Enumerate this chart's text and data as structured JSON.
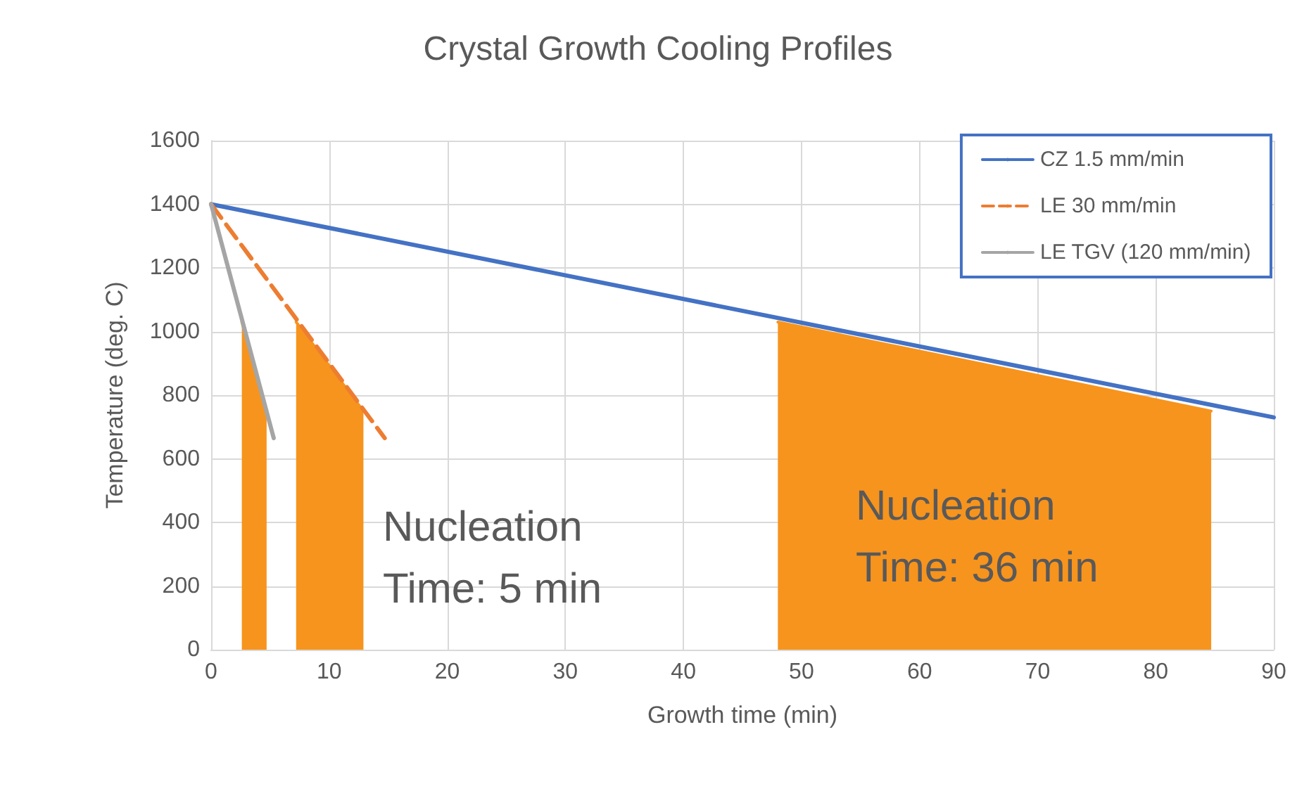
{
  "chart_data": {
    "type": "line",
    "title": "Crystal Growth Cooling Profiles",
    "xlabel": "Growth time (min)",
    "ylabel": "Temperature (deg. C)",
    "xlim": [
      0,
      90
    ],
    "xticks": [
      0,
      10,
      20,
      30,
      40,
      50,
      60,
      70,
      80,
      90
    ],
    "ylim": [
      0,
      1600
    ],
    "yticks": [
      0,
      200,
      400,
      600,
      800,
      1000,
      1200,
      1400,
      1600
    ],
    "grid": true,
    "legend": "top right",
    "marker": "none",
    "series": [
      {
        "name": "CZ 1.5 mm/min",
        "color": "#4472c4",
        "x": [
          0,
          90
        ],
        "values": [
          1400,
          730
        ]
      },
      {
        "name": "LE 30 mm/min",
        "color": "#ed7d31",
        "line_style": "dashed",
        "x": [
          0,
          14.7
        ],
        "values": [
          1400,
          665
        ]
      },
      {
        "name": "LE TGV (120 mm/min)",
        "color": "#a5a5a5",
        "x": [
          0,
          5.3
        ],
        "values": [
          1400,
          665
        ]
      },
      {
        "type": "area",
        "color": "#f7941d",
        "x": [
          2.6,
          4.7
        ],
        "values": [
          1030,
          750
        ]
      },
      {
        "type": "area",
        "color": "#f7941d",
        "x": [
          7.2,
          12.9
        ],
        "values": [
          1030,
          750
        ]
      },
      {
        "type": "area",
        "color": "#f7941d",
        "x": [
          48,
          84.7
        ],
        "values": [
          1030,
          750
        ]
      }
    ],
    "annotations": [
      "Nucleation\nTime: 5 min",
      "Nucleation\nTime: 36 min"
    ]
  }
}
